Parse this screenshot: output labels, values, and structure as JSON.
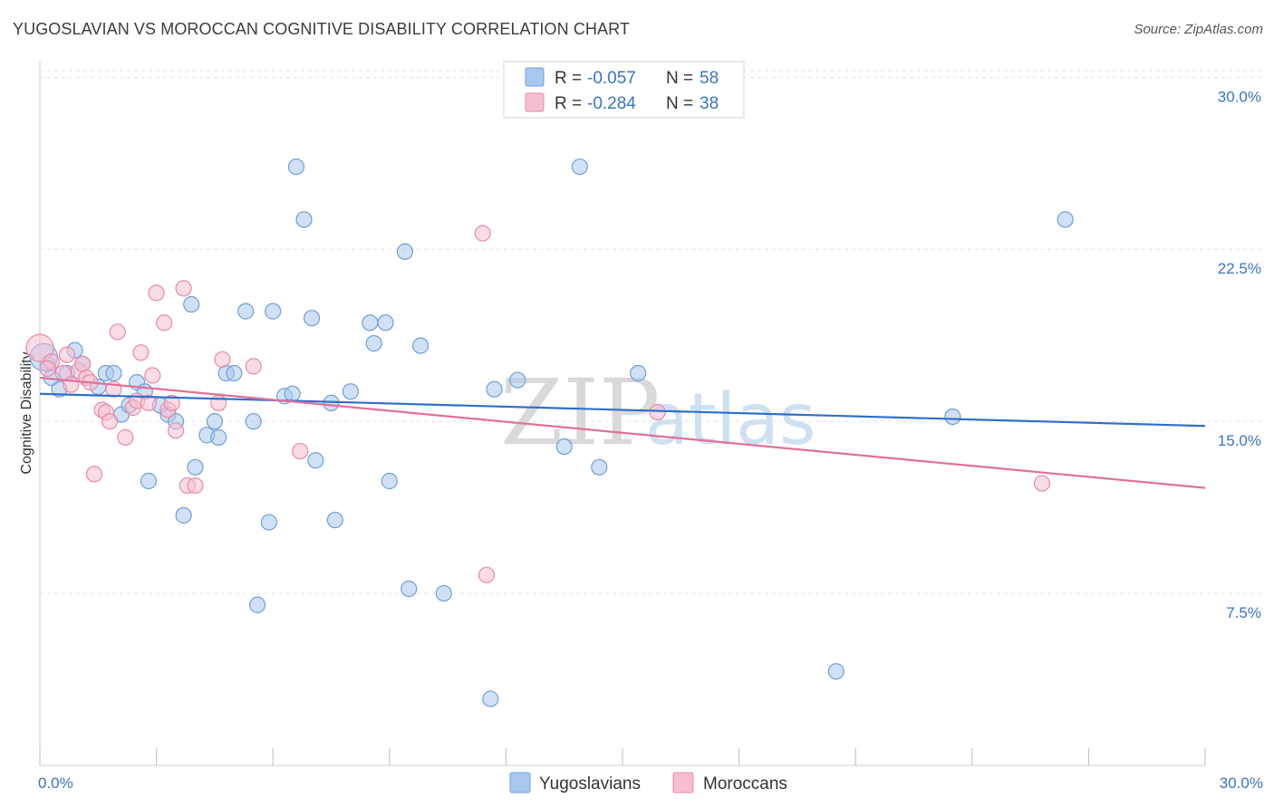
{
  "title": "YUGOSLAVIAN VS MOROCCAN COGNITIVE DISABILITY CORRELATION CHART",
  "source": "Source: ZipAtlas.com",
  "watermark": {
    "zip": "ZIP",
    "atlas": "atlas"
  },
  "colors": {
    "yugoslavians": "#a9c8ef",
    "yugoslavians_stroke": "#6f9fd8",
    "yugoslavians_line": "#2f6fc9",
    "moroccans": "#f5bfd0",
    "moroccans_stroke": "#e88aa8",
    "moroccans_line": "#e0709a"
  },
  "legend": {
    "r_label": "R =",
    "n_label": "N =",
    "rows": [
      {
        "r": "-0.057",
        "n": "58"
      },
      {
        "r": "-0.284",
        "n": "38"
      }
    ]
  },
  "bottom_legend": [
    "Yugoslavians",
    "Moroccans"
  ],
  "chart_data": {
    "type": "scatter",
    "title": "YUGOSLAVIAN VS MOROCCAN COGNITIVE DISABILITY CORRELATION CHART",
    "xlabel": "",
    "ylabel": "Cognitive Disability",
    "xlim": [
      0,
      30
    ],
    "ylim": [
      0,
      31
    ],
    "x_tick_labels": [
      "0.0%",
      "30.0%"
    ],
    "y_ticks": [
      7.5,
      15.0,
      22.5,
      30.0
    ],
    "y_tick_labels": [
      "7.5%",
      "15.0%",
      "22.5%",
      "30.0%"
    ],
    "grid": "horizontal dashed",
    "legend_placement": "top-center",
    "series": [
      {
        "name": "Yugoslavians",
        "r": -0.057,
        "n": 58,
        "trend": {
          "x": [
            0,
            30
          ],
          "y": [
            16.2,
            14.8
          ]
        },
        "points": [
          [
            0.2,
            17.5
          ],
          [
            0.3,
            16.9
          ],
          [
            0.5,
            16.4
          ],
          [
            0.7,
            17.1
          ],
          [
            0.9,
            18.1
          ],
          [
            1.1,
            17.5
          ],
          [
            1.5,
            16.5
          ],
          [
            1.7,
            17.1
          ],
          [
            1.9,
            17.1
          ],
          [
            2.1,
            15.3
          ],
          [
            2.3,
            15.7
          ],
          [
            2.5,
            16.7
          ],
          [
            2.7,
            16.3
          ],
          [
            2.8,
            12.4
          ],
          [
            3.1,
            15.7
          ],
          [
            3.3,
            15.3
          ],
          [
            3.5,
            15.0
          ],
          [
            3.7,
            10.9
          ],
          [
            3.9,
            20.1
          ],
          [
            4.0,
            13.0
          ],
          [
            4.3,
            14.4
          ],
          [
            4.5,
            15.0
          ],
          [
            4.6,
            14.3
          ],
          [
            4.8,
            17.1
          ],
          [
            5.0,
            17.1
          ],
          [
            5.3,
            19.8
          ],
          [
            5.5,
            15.0
          ],
          [
            5.6,
            7.0
          ],
          [
            5.9,
            10.6
          ],
          [
            6.0,
            19.8
          ],
          [
            6.3,
            16.1
          ],
          [
            6.5,
            16.2
          ],
          [
            6.6,
            26.1
          ],
          [
            6.8,
            23.8
          ],
          [
            7.0,
            19.5
          ],
          [
            7.1,
            13.3
          ],
          [
            7.5,
            15.8
          ],
          [
            7.6,
            10.7
          ],
          [
            8.0,
            16.3
          ],
          [
            8.5,
            19.3
          ],
          [
            8.6,
            18.4
          ],
          [
            8.9,
            19.3
          ],
          [
            9.0,
            12.4
          ],
          [
            9.4,
            22.4
          ],
          [
            9.5,
            7.7
          ],
          [
            9.8,
            18.3
          ],
          [
            10.4,
            7.5
          ],
          [
            11.6,
            2.9
          ],
          [
            11.7,
            16.4
          ],
          [
            12.3,
            16.8
          ],
          [
            13.5,
            13.9
          ],
          [
            13.9,
            26.1
          ],
          [
            14.4,
            13.0
          ],
          [
            15.4,
            17.1
          ],
          [
            20.5,
            4.1
          ],
          [
            23.5,
            15.2
          ],
          [
            26.4,
            23.8
          ],
          [
            0.1,
            17.8
          ]
        ]
      },
      {
        "name": "Moroccans",
        "r": -0.284,
        "n": 38,
        "trend": {
          "x": [
            0,
            30
          ],
          "y": [
            16.9,
            12.1
          ]
        },
        "points": [
          [
            0.0,
            18.2
          ],
          [
            0.3,
            17.6
          ],
          [
            0.6,
            17.1
          ],
          [
            0.7,
            17.9
          ],
          [
            0.8,
            16.6
          ],
          [
            1.0,
            17.2
          ],
          [
            1.1,
            17.5
          ],
          [
            1.2,
            16.9
          ],
          [
            1.4,
            12.7
          ],
          [
            1.6,
            15.5
          ],
          [
            1.7,
            15.4
          ],
          [
            1.8,
            15.0
          ],
          [
            1.9,
            16.4
          ],
          [
            2.0,
            18.9
          ],
          [
            2.2,
            14.3
          ],
          [
            2.4,
            15.6
          ],
          [
            2.5,
            15.9
          ],
          [
            2.6,
            18.0
          ],
          [
            2.8,
            15.8
          ],
          [
            2.9,
            17.0
          ],
          [
            3.0,
            20.6
          ],
          [
            3.2,
            19.3
          ],
          [
            3.3,
            15.5
          ],
          [
            3.4,
            15.8
          ],
          [
            3.5,
            14.6
          ],
          [
            3.7,
            20.8
          ],
          [
            3.8,
            12.2
          ],
          [
            4.0,
            12.2
          ],
          [
            4.6,
            15.8
          ],
          [
            4.7,
            17.7
          ],
          [
            5.5,
            17.4
          ],
          [
            6.7,
            13.7
          ],
          [
            11.4,
            23.2
          ],
          [
            11.5,
            8.3
          ],
          [
            15.9,
            15.4
          ],
          [
            25.8,
            12.3
          ],
          [
            0.2,
            17.3
          ],
          [
            1.3,
            16.7
          ]
        ]
      }
    ]
  }
}
